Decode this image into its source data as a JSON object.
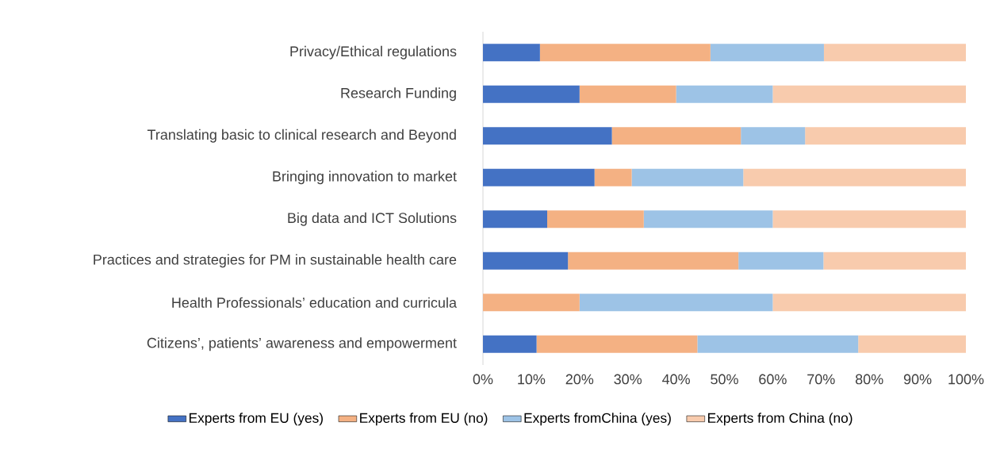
{
  "chart_data": {
    "type": "bar",
    "orientation": "horizontal",
    "stacked": true,
    "categories": [
      "Privacy/Ethical regulations",
      "Research Funding",
      "Translating basic to clinical research and Beyond",
      "Bringing innovation to market",
      "Big data and ICT Solutions",
      "Practices and strategies for PM in sustainable health care",
      "Health Professionals’ education and curricula",
      "Citizens’, patients’ awareness and empowerment"
    ],
    "series": [
      {
        "name": "Experts from EU (yes)",
        "color": "#4472c4",
        "values": [
          11.8,
          20,
          26.7,
          23.1,
          13.3,
          17.6,
          0,
          11.1
        ]
      },
      {
        "name": "Experts from EU (no)",
        "color": "#f4b183",
        "values": [
          35.3,
          20,
          26.7,
          7.7,
          20,
          35.3,
          20,
          33.3
        ]
      },
      {
        "name": "Experts fromChina (yes)",
        "color": "#9dc3e6",
        "values": [
          23.5,
          20,
          13.3,
          23.1,
          26.7,
          17.6,
          40,
          33.3
        ]
      },
      {
        "name": "Experts from China (no)",
        "color": "#f8cbad",
        "values": [
          29.4,
          40,
          33.3,
          46.2,
          40,
          29.5,
          40,
          22.3
        ]
      }
    ],
    "xlim": [
      0,
      100
    ],
    "xticks": [
      {
        "value": 0,
        "label": "0%"
      },
      {
        "value": 10,
        "label": "10%"
      },
      {
        "value": 20,
        "label": "20%"
      },
      {
        "value": 30,
        "label": "30%"
      },
      {
        "value": 40,
        "label": "40%"
      },
      {
        "value": 50,
        "label": "50%"
      },
      {
        "value": 60,
        "label": "60%"
      },
      {
        "value": 70,
        "label": "70%"
      },
      {
        "value": 80,
        "label": "80%"
      },
      {
        "value": 90,
        "label": "90%"
      },
      {
        "value": 100,
        "label": "100%"
      }
    ],
    "legend": "bottom"
  }
}
